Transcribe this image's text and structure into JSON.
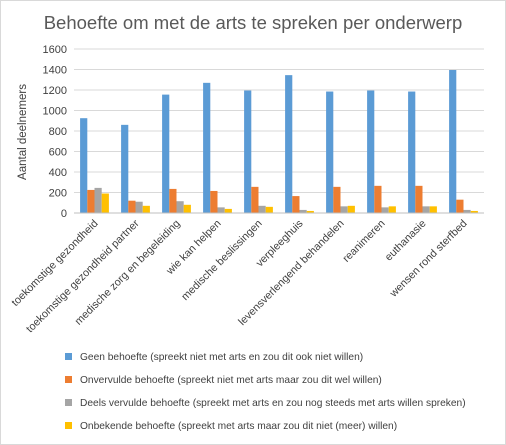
{
  "chart_data": {
    "type": "bar",
    "title": "Behoefte om met de arts te spreken per onderwerp",
    "ylabel": "Aantal deelnemers",
    "xlabel": "",
    "ylim": [
      0,
      1600
    ],
    "yticks": [
      0,
      200,
      400,
      600,
      800,
      1000,
      1200,
      1400,
      1600
    ],
    "grid": true,
    "legend_position": "bottom",
    "categories": [
      "toekomstige gezondheid",
      "toekomstige gezondheid partner",
      "medische zorg en begeleiding",
      "wie kan helpen",
      "medische beslissingen",
      "verpleeghuis",
      "levensverlengend behandelen",
      "reanimeren",
      "euthanasie",
      "wensen rond sterfbed"
    ],
    "series": [
      {
        "name": "Geen behoefte (spreekt niet met arts en zou dit ook niet willen)",
        "color": "#5b9bd5",
        "values": [
          925,
          860,
          1155,
          1270,
          1195,
          1345,
          1185,
          1195,
          1185,
          1395
        ]
      },
      {
        "name": "Onvervulde behoefte (spreekt niet met arts maar zou dit wel willen)",
        "color": "#ed7d31",
        "values": [
          225,
          120,
          235,
          215,
          255,
          165,
          255,
          265,
          265,
          130
        ]
      },
      {
        "name": "Deels vervulde behoefte (spreekt met arts en zou nog steeds met arts willen spreken)",
        "color": "#a5a5a5",
        "values": [
          245,
          110,
          115,
          55,
          70,
          30,
          65,
          55,
          65,
          30
        ]
      },
      {
        "name": "Onbekende behoefte (spreekt met arts maar zou dit niet (meer) willen)",
        "color": "#ffc000",
        "values": [
          190,
          70,
          80,
          40,
          60,
          20,
          70,
          65,
          65,
          20
        ]
      }
    ]
  }
}
